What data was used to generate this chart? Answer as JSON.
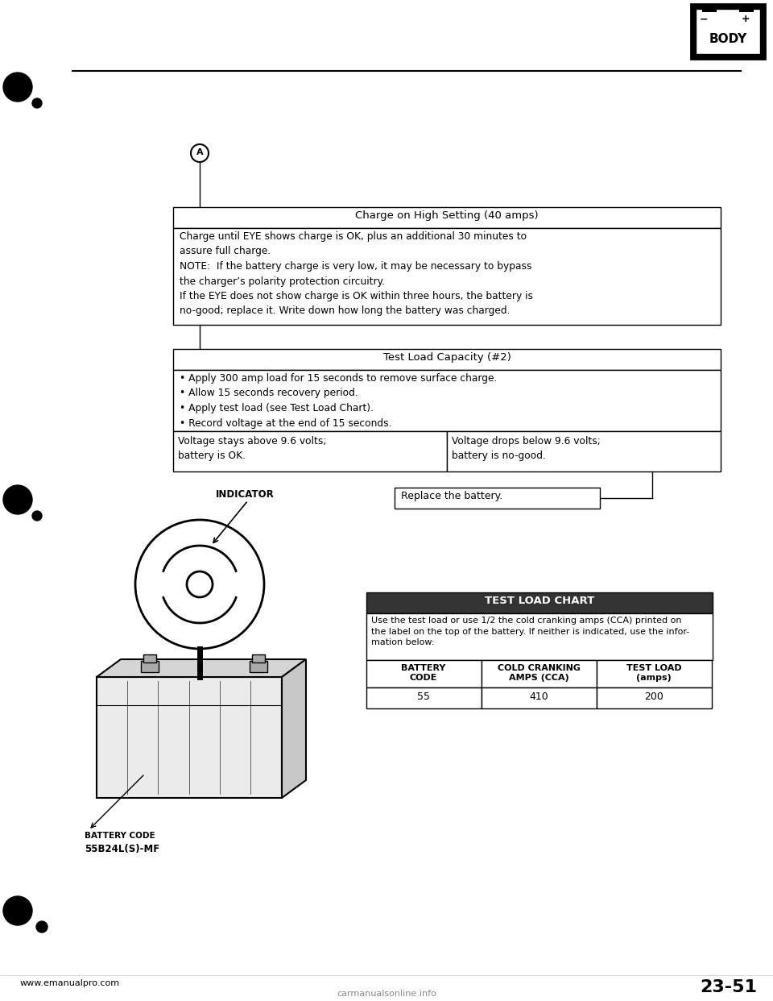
{
  "bg_color": "#ffffff",
  "text_color": "#000000",
  "page_num": "23-51",
  "website": "www.emanualpro.com",
  "watermark": "carmanualsonline.info",
  "body_icon_text": "BODY",
  "charge_box": {
    "title": "Charge on High Setting (40 amps)",
    "body_line1": "Charge until EYE shows charge is OK, plus an additional 30 minutes to",
    "body_line2": "assure full charge.",
    "body_line3": "NOTE:  If the battery charge is very low, it may be necessary to bypass",
    "body_line4": "the charger’s polarity protection circuitry.",
    "body_line5": "If the EYE does not show charge is OK within three hours, the battery is",
    "body_line6": "no-good; replace it. Write down how long the battery was charged."
  },
  "test_load_box": {
    "title": "Test Load Capacity (#2)",
    "bullet1": "• Apply 300 amp load for 15 seconds to remove surface charge.",
    "bullet2": "• Allow 15 seconds recovery period.",
    "bullet3": "• Apply test load (see Test Load Chart).",
    "bullet4": "• Record voltage at the end of 15 seconds.",
    "left_cell_line1": "Voltage stays above 9.6 volts;",
    "left_cell_line2": "battery is OK.",
    "right_cell_line1": "Voltage drops below 9.6 volts;",
    "right_cell_line2": "battery is no-good."
  },
  "replace_box": "Replace the battery.",
  "indicator_label": "INDICATOR",
  "test_load_chart": {
    "title": "TEST LOAD CHART",
    "desc_line1": "Use the test load or use 1/2 the cold cranking amps (CCA) printed on",
    "desc_line2": "the label on the top of the battery. If neither is indicated, use the infor-",
    "desc_line3": "mation below:",
    "hdr1_l1": "BATTERY",
    "hdr1_l2": "CODE",
    "hdr2_l1": "COLD CRANKING",
    "hdr2_l2": "AMPS (CCA)",
    "hdr3_l1": "TEST LOAD",
    "hdr3_l2": "(amps)",
    "val1": "55",
    "val2": "410",
    "val3": "200"
  },
  "battery_code_label": "BATTERY CODE",
  "battery_code_value": "55B24L(S)-MF"
}
